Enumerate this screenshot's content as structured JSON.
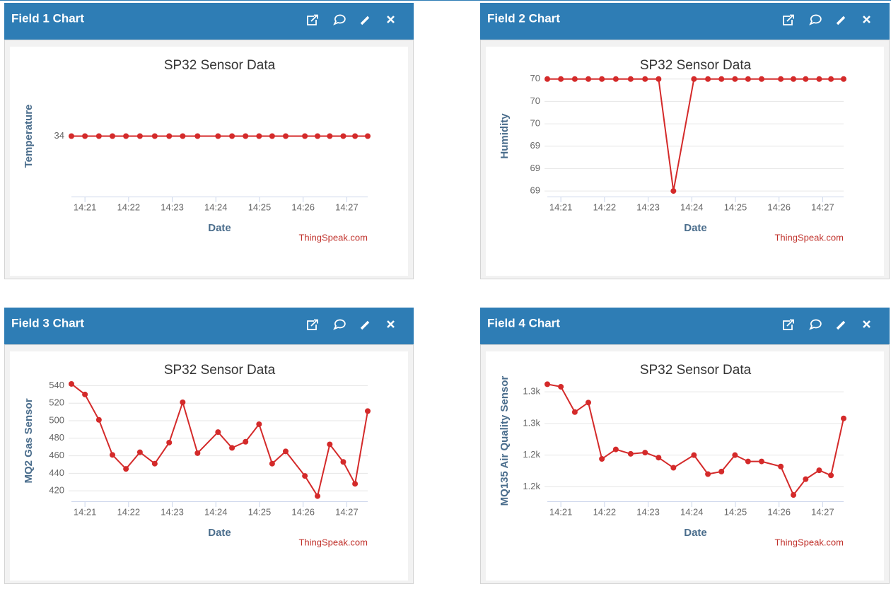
{
  "panels": [
    {
      "title": "Field 1 Chart"
    },
    {
      "title": "Field 2 Chart"
    },
    {
      "title": "Field 3 Chart"
    },
    {
      "title": "Field 4 Chart"
    }
  ],
  "chart_data": [
    {
      "type": "line",
      "title": "SP32 Sensor Data",
      "xlabel": "Date",
      "ylabel": "Temperature",
      "credit": "ThingSpeak.com",
      "color": "#d42a2a",
      "grid": true,
      "x": [
        20.69,
        21.0,
        21.32,
        21.63,
        21.94,
        22.26,
        22.6,
        22.93,
        23.24,
        23.58,
        24.05,
        24.37,
        24.68,
        24.99,
        25.29,
        25.6,
        26.04,
        26.33,
        26.61,
        26.92,
        27.19,
        27.48
      ],
      "values": [
        34,
        34,
        34,
        34,
        34,
        34,
        34,
        34,
        34,
        34,
        34,
        34,
        34,
        34,
        34,
        34,
        34,
        34,
        34,
        34,
        34,
        34
      ],
      "xlim": [
        20.69,
        27.48
      ],
      "xticks": [
        {
          "value": 21,
          "label": "14:21"
        },
        {
          "value": 22,
          "label": "14:22"
        },
        {
          "value": 23,
          "label": "14:23"
        },
        {
          "value": 24,
          "label": "14:24"
        },
        {
          "value": 25,
          "label": "14:25"
        },
        {
          "value": 26,
          "label": "14:26"
        },
        {
          "value": 27,
          "label": "14:27"
        }
      ],
      "ylim": [
        33,
        35
      ],
      "yticks": [
        34
      ]
    },
    {
      "type": "line",
      "title": "SP32 Sensor Data",
      "xlabel": "Date",
      "ylabel": "Humidity",
      "credit": "ThingSpeak.com",
      "color": "#d42a2a",
      "grid": true,
      "x": [
        20.69,
        21.0,
        21.32,
        21.63,
        21.94,
        22.26,
        22.6,
        22.93,
        23.24,
        23.58,
        24.05,
        24.37,
        24.68,
        24.99,
        25.29,
        25.6,
        26.04,
        26.33,
        26.61,
        26.92,
        27.19,
        27.48
      ],
      "values": [
        70,
        70,
        70,
        70,
        70,
        70,
        70,
        70,
        70,
        69,
        70,
        70,
        70,
        70,
        70,
        70,
        70,
        70,
        70,
        70,
        70,
        70
      ],
      "xlim": [
        20.69,
        27.48
      ],
      "xticks": [
        {
          "value": 21,
          "label": "14:21"
        },
        {
          "value": 22,
          "label": "14:22"
        },
        {
          "value": 23,
          "label": "14:23"
        },
        {
          "value": 24,
          "label": "14:24"
        },
        {
          "value": 25,
          "label": "14:25"
        },
        {
          "value": 26,
          "label": "14:26"
        },
        {
          "value": 27,
          "label": "14:27"
        }
      ],
      "ylim": [
        68.95,
        70.03
      ],
      "yticks": [
        70,
        {
          "value": 69.8,
          "label": "70"
        },
        {
          "value": 69.6,
          "label": "70"
        },
        {
          "value": 69.4,
          "label": "69"
        },
        {
          "value": 69.2,
          "label": "69"
        },
        69
      ]
    },
    {
      "type": "line",
      "title": "SP32 Sensor Data",
      "xlabel": "Date",
      "ylabel": "MQ2 Gas Sensor",
      "credit": "ThingSpeak.com",
      "color": "#d42a2a",
      "grid": true,
      "x": [
        20.69,
        21.0,
        21.32,
        21.63,
        21.94,
        22.26,
        22.6,
        22.93,
        23.24,
        23.58,
        24.05,
        24.37,
        24.68,
        24.99,
        25.29,
        25.6,
        26.04,
        26.33,
        26.61,
        26.92,
        27.19,
        27.48
      ],
      "values": [
        542,
        530,
        501,
        461,
        445,
        464,
        451,
        475,
        521,
        463,
        487,
        469,
        476,
        496,
        451,
        465,
        437,
        414,
        473,
        453,
        428,
        511
      ],
      "xlim": [
        20.69,
        27.48
      ],
      "xticks": [
        {
          "value": 21,
          "label": "14:21"
        },
        {
          "value": 22,
          "label": "14:22"
        },
        {
          "value": 23,
          "label": "14:23"
        },
        {
          "value": 24,
          "label": "14:24"
        },
        {
          "value": 25,
          "label": "14:25"
        },
        {
          "value": 26,
          "label": "14:26"
        },
        {
          "value": 27,
          "label": "14:27"
        }
      ],
      "ylim": [
        408,
        546
      ],
      "yticks": [
        540,
        520,
        500,
        480,
        460,
        440,
        420
      ]
    },
    {
      "type": "line",
      "title": "SP32 Sensor Data",
      "xlabel": "Date",
      "ylabel": "MQ135 Air Quality Sensor",
      "credit": "ThingSpeak.com",
      "color": "#d42a2a",
      "grid": true,
      "x": [
        20.69,
        21.0,
        21.32,
        21.63,
        21.94,
        22.26,
        22.6,
        22.93,
        23.24,
        23.58,
        24.05,
        24.37,
        24.68,
        24.99,
        25.29,
        25.6,
        26.04,
        26.33,
        26.61,
        26.92,
        27.19,
        27.48
      ],
      "values": [
        1312,
        1308,
        1268,
        1283,
        1194,
        1209,
        1202,
        1204,
        1196,
        1180,
        1200,
        1170,
        1174,
        1200,
        1190,
        1190,
        1182,
        1137,
        1162,
        1176,
        1168,
        1258
      ],
      "xlim": [
        20.69,
        27.48
      ],
      "xticks": [
        {
          "value": 21,
          "label": "14:21"
        },
        {
          "value": 22,
          "label": "14:22"
        },
        {
          "value": 23,
          "label": "14:23"
        },
        {
          "value": 24,
          "label": "14:24"
        },
        {
          "value": 25,
          "label": "14:25"
        },
        {
          "value": 26,
          "label": "14:26"
        },
        {
          "value": 27,
          "label": "14:27"
        }
      ],
      "ylim": [
        1127,
        1318
      ],
      "yticks": [
        {
          "value": 1300,
          "label": "1.3k"
        },
        {
          "value": 1250,
          "label": "1.3k"
        },
        {
          "value": 1200,
          "label": "1.2k"
        },
        {
          "value": 1150,
          "label": "1.2k"
        }
      ]
    }
  ]
}
